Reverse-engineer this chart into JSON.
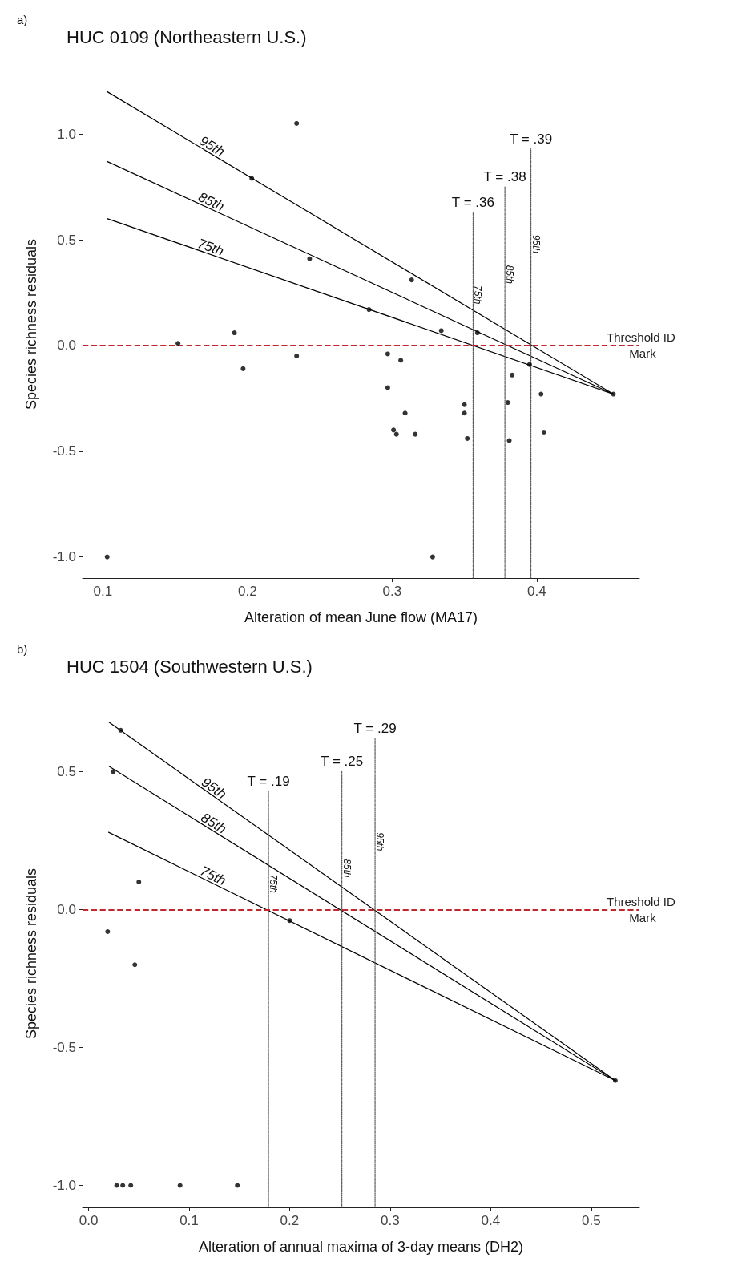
{
  "chart_data": [
    {
      "type": "scatter",
      "subtitle": "a)",
      "title": "HUC 0109 (Northeastern U.S.)",
      "xlabel": "Alteration of mean June flow (MA17)",
      "ylabel": "Species richness residuals",
      "xlim": [
        0.086,
        0.471
      ],
      "xticks": [
        0.1,
        0.2,
        0.3,
        0.4
      ],
      "ylim": [
        -1.1,
        1.3
      ],
      "yticks": [
        {
          "value": -1,
          "label": "-1.0"
        },
        {
          "value": -0.5,
          "label": "-0.5"
        },
        {
          "value": 0,
          "label": "0.0"
        },
        {
          "value": 0.5,
          "label": "0.5"
        },
        {
          "value": 1,
          "label": "1.0"
        }
      ],
      "marker": "circle",
      "grid": false,
      "legend": false,
      "series": [
        {
          "color": "#000000",
          "x": [
            0.103,
            0.152,
            0.191,
            0.197,
            0.203,
            0.234,
            0.234,
            0.243,
            0.284,
            0.297,
            0.297,
            0.3135,
            0.334,
            0.359,
            0.306,
            0.395,
            0.383,
            0.453,
            0.403,
            0.35,
            0.35,
            0.38,
            0.309,
            0.301,
            0.303,
            0.316,
            0.352,
            0.381,
            0.405,
            0.328
          ],
          "values": [
            -1.0,
            0.01,
            0.06,
            -0.11,
            0.79,
            1.05,
            -0.05,
            0.41,
            0.17,
            -0.04,
            -0.2,
            0.31,
            0.07,
            0.06,
            -0.07,
            -0.09,
            -0.14,
            -0.23,
            -0.23,
            -0.28,
            -0.32,
            -0.27,
            -0.32,
            -0.4,
            -0.42,
            -0.42,
            -0.44,
            -0.45,
            -0.41,
            -1.0
          ]
        },
        {
          "type": "line",
          "name": "95th",
          "color": "#000000",
          "marker": "none",
          "x": [
            0.103,
            0.453
          ],
          "values": [
            1.2,
            -0.23
          ]
        },
        {
          "type": "line",
          "name": "85th",
          "color": "#000000",
          "marker": "none",
          "x": [
            0.103,
            0.453
          ],
          "values": [
            0.87,
            -0.23
          ]
        },
        {
          "type": "line",
          "name": "75th",
          "color": "#000000",
          "marker": "none",
          "x": [
            0.103,
            0.453
          ],
          "values": [
            0.6,
            -0.23
          ]
        },
        {
          "type": "line",
          "name": "75th",
          "color": "#555555",
          "marker": "none",
          "line_style": "dotted",
          "x": [
            0.356,
            0.356
          ],
          "values": [
            -1.1,
            0.63
          ]
        },
        {
          "type": "line",
          "name": "85th",
          "color": "#555555",
          "marker": "none",
          "line_style": "dotted",
          "x": [
            0.378,
            0.378
          ],
          "values": [
            -1.1,
            0.75
          ]
        },
        {
          "type": "line",
          "name": "95th",
          "color": "#555555",
          "marker": "none",
          "line_style": "dotted",
          "x": [
            0.396,
            0.396
          ],
          "values": [
            -1.1,
            0.93
          ]
        }
      ],
      "ref_lines": [
        {
          "axis": "y",
          "value": 0,
          "label": "Threshold ID Mark",
          "color": "#c0282d",
          "line_style": "dashed"
        }
      ],
      "annotations": [
        {
          "text": "T = .36",
          "x": 0.356,
          "y": 0.63
        },
        {
          "text": "T = .38",
          "x": 0.378,
          "y": 0.75
        },
        {
          "text": "T = .39",
          "x": 0.396,
          "y": 0.93
        }
      ]
    },
    {
      "type": "scatter",
      "subtitle": "b)",
      "title": "HUC 1504 (Southwestern U.S.)",
      "xlabel": "Alteration of annual maxima of 3-day means (DH2)",
      "ylabel": "Species richness residuals",
      "xlim": [
        -0.006,
        0.548
      ],
      "xticks": [
        {
          "value": 0,
          "label": "0.0"
        },
        0.1,
        0.2,
        0.3,
        0.4,
        0.5
      ],
      "ylim": [
        -1.08,
        0.76
      ],
      "yticks": [
        {
          "value": -1,
          "label": "-1.0"
        },
        {
          "value": -0.5,
          "label": "-0.5"
        },
        {
          "value": 0,
          "label": "0.0"
        },
        {
          "value": 0.5,
          "label": "0.5"
        }
      ],
      "marker": "circle",
      "grid": false,
      "legend": false,
      "series": [
        {
          "color": "#000000",
          "x": [
            0.032,
            0.0245,
            0.05,
            0.019,
            0.046,
            0.2,
            0.028,
            0.034,
            0.042,
            0.091,
            0.148,
            0.524
          ],
          "values": [
            0.65,
            0.5,
            0.1,
            -0.08,
            -0.2,
            -0.04,
            -1.0,
            -1.0,
            -1.0,
            -1.0,
            -1.0,
            -0.62
          ]
        },
        {
          "type": "line",
          "name": "95th",
          "color": "#000000",
          "marker": "none",
          "x": [
            0.02,
            0.524
          ],
          "values": [
            0.68,
            -0.62
          ]
        },
        {
          "type": "line",
          "name": "85th",
          "color": "#000000",
          "marker": "none",
          "x": [
            0.02,
            0.524
          ],
          "values": [
            0.52,
            -0.62
          ]
        },
        {
          "type": "line",
          "name": "75th",
          "color": "#000000",
          "marker": "none",
          "x": [
            0.02,
            0.524
          ],
          "values": [
            0.28,
            -0.62
          ]
        },
        {
          "type": "line",
          "name": "75th",
          "color": "#555555",
          "marker": "none",
          "line_style": "dotted",
          "x": [
            0.179,
            0.179
          ],
          "values": [
            -1.08,
            0.43
          ]
        },
        {
          "type": "line",
          "name": "85th",
          "color": "#555555",
          "marker": "none",
          "line_style": "dotted",
          "x": [
            0.252,
            0.252
          ],
          "values": [
            -1.08,
            0.5
          ]
        },
        {
          "type": "line",
          "name": "95th",
          "color": "#555555",
          "marker": "none",
          "line_style": "dotted",
          "x": [
            0.285,
            0.285
          ],
          "values": [
            -1.08,
            0.62
          ]
        }
      ],
      "ref_lines": [
        {
          "axis": "y",
          "value": 0,
          "label": "Threshold ID Mark",
          "color": "#c0282d",
          "line_style": "dashed"
        }
      ],
      "annotations": [
        {
          "text": "T = .19",
          "x": 0.179,
          "y": 0.43
        },
        {
          "text": "T = .25",
          "x": 0.252,
          "y": 0.5
        },
        {
          "text": "T = .29",
          "x": 0.285,
          "y": 0.62
        }
      ]
    }
  ]
}
